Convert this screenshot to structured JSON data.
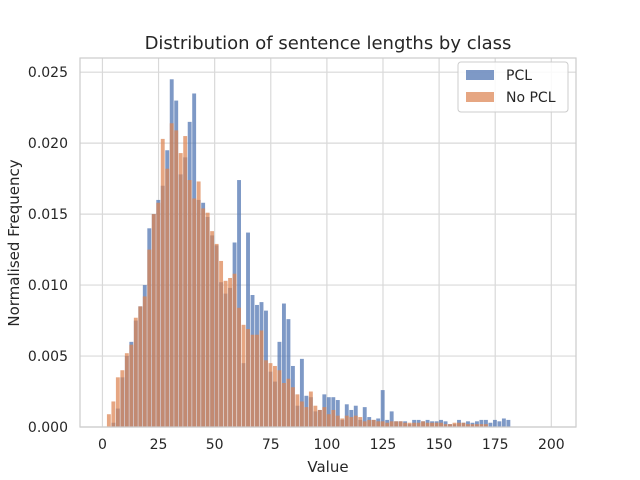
{
  "chart_data": {
    "type": "bar",
    "title": "Distribution of sentence lengths by class",
    "xlabel": "Value",
    "ylabel": "Normalised Frequency",
    "xlim": [
      -10,
      211
    ],
    "ylim": [
      0,
      0.026
    ],
    "x_ticks": [
      "0",
      "25",
      "50",
      "75",
      "100",
      "125",
      "150",
      "175",
      "200"
    ],
    "y_ticks": [
      "0.000",
      "0.005",
      "0.010",
      "0.015",
      "0.020",
      "0.025"
    ],
    "grid": true,
    "legend_position": "top-right",
    "bin_width": 2,
    "series": [
      {
        "name": "PCL",
        "color": "#4c72b0",
        "bin_starts": [
          4,
          6,
          8,
          10,
          12,
          14,
          16,
          18,
          20,
          22,
          24,
          26,
          28,
          30,
          32,
          34,
          36,
          38,
          40,
          42,
          44,
          46,
          48,
          50,
          52,
          54,
          56,
          58,
          60,
          62,
          64,
          66,
          68,
          70,
          72,
          74,
          76,
          78,
          80,
          82,
          84,
          86,
          88,
          90,
          92,
          94,
          96,
          98,
          100,
          102,
          104,
          106,
          108,
          110,
          112,
          114,
          116,
          118,
          120,
          122,
          124,
          126,
          128,
          130,
          132,
          134,
          136,
          138,
          140,
          142,
          144,
          146,
          148,
          150,
          152,
          154,
          156,
          158,
          160,
          162,
          164,
          166,
          168,
          170,
          172,
          174,
          176,
          178,
          180
        ],
        "values": [
          0.0003,
          0.0013,
          0.0035,
          0.005,
          0.006,
          0.0075,
          0.0085,
          0.01,
          0.014,
          0.015,
          0.016,
          0.017,
          0.0195,
          0.0245,
          0.023,
          0.0178,
          0.019,
          0.0215,
          0.0235,
          0.016,
          0.0158,
          0.0148,
          0.0135,
          0.0128,
          0.0102,
          0.0094,
          0.0098,
          0.013,
          0.0174,
          0.0045,
          0.0137,
          0.0093,
          0.0086,
          0.0088,
          0.0082,
          0.0039,
          0.0032,
          0.006,
          0.0087,
          0.0076,
          0.0043,
          0.0015,
          0.0048,
          0.0022,
          0.0021,
          0.0011,
          0.0012,
          0.0023,
          0.0021,
          0.0021,
          0.0019,
          0.0005,
          0.0016,
          0.0012,
          0.0015,
          0.0005,
          0.0014,
          0.0007,
          0.0005,
          0.0006,
          0.0026,
          0.0005,
          0.0011,
          0.0004,
          0.0004,
          0.0004,
          0.0002,
          0.0005,
          0.0005,
          0.0004,
          0.0005,
          0.0004,
          0.0004,
          0.0005,
          0.0004,
          0.0002,
          0.0002,
          0.0005,
          0.0003,
          0.0004,
          0.0003,
          0.0004,
          0.0005,
          0.0005,
          0.0003,
          0.0005,
          0.0004,
          0.0006,
          0.0005
        ]
      },
      {
        "name": "No PCL",
        "color": "#dd8452",
        "bin_starts": [
          2,
          4,
          6,
          8,
          10,
          12,
          14,
          16,
          18,
          20,
          22,
          24,
          26,
          28,
          30,
          32,
          34,
          36,
          38,
          40,
          42,
          44,
          46,
          48,
          50,
          52,
          54,
          56,
          58,
          60,
          62,
          64,
          66,
          68,
          70,
          72,
          74,
          76,
          78,
          80,
          82,
          84,
          86,
          88,
          90,
          92,
          94,
          96,
          98,
          100,
          102,
          104,
          106,
          108,
          110,
          112,
          114,
          116,
          118,
          120,
          122,
          124,
          126,
          128,
          130,
          132,
          134,
          136,
          138,
          140,
          142,
          144,
          146,
          148,
          150,
          152,
          154,
          156,
          158,
          160,
          162,
          164,
          166,
          168,
          170
        ],
        "values": [
          0.0009,
          0.0018,
          0.0035,
          0.004,
          0.0052,
          0.0058,
          0.0077,
          0.0085,
          0.0092,
          0.0125,
          0.015,
          0.0158,
          0.0203,
          0.0182,
          0.0214,
          0.0209,
          0.0193,
          0.0205,
          0.0174,
          0.0161,
          0.0173,
          0.0154,
          0.0151,
          0.0138,
          0.0129,
          0.0117,
          0.0103,
          0.0105,
          0.0108,
          0.0084,
          0.0072,
          0.0069,
          0.0065,
          0.0065,
          0.0068,
          0.0047,
          0.0045,
          0.0043,
          0.004,
          0.0031,
          0.0034,
          0.0028,
          0.0023,
          0.0018,
          0.0014,
          0.0025,
          0.0015,
          0.0012,
          0.0014,
          0.0009,
          0.0012,
          0.0008,
          0.0006,
          0.0008,
          0.0007,
          0.0008,
          0.0007,
          0.0004,
          0.0005,
          0.0005,
          0.0004,
          0.0004,
          0.0003,
          0.0004,
          0.0004,
          0.0004,
          0.0003,
          0.0003,
          0.0003,
          0.0003,
          0.0004,
          0.0003,
          0.0003,
          0.0003,
          0.0003,
          0.0002,
          0.0002,
          0.0003,
          0.0003,
          0.0003,
          0.0002,
          0.0002,
          0.0002,
          0.0002,
          0.0002
        ]
      }
    ]
  }
}
